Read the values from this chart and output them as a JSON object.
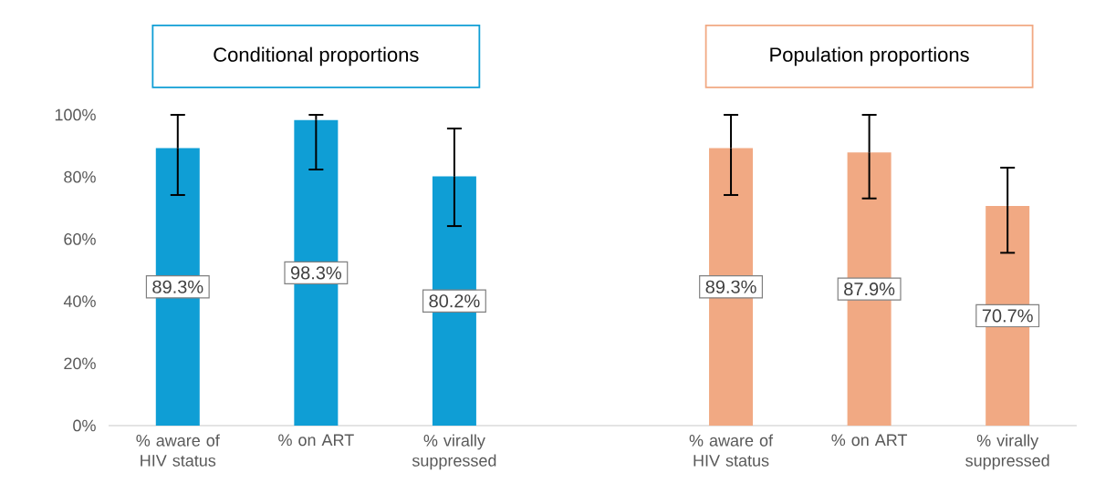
{
  "chart_data": {
    "type": "bar",
    "categories": [
      "% aware of HIV status",
      "% on ART",
      "% virally suppressed",
      null,
      "% aware of HIV status",
      "% on ART",
      "% virally suppressed"
    ],
    "values": [
      89.3,
      98.3,
      80.2,
      null,
      89.3,
      87.9,
      70.7
    ],
    "colors": [
      "#0f9ed5",
      "#0f9ed5",
      "#0f9ed5",
      null,
      "#f1a983",
      "#f1a983",
      "#f1a983"
    ],
    "errors": [
      [
        74.2,
        100
      ],
      [
        82.4,
        100
      ],
      [
        64.2,
        95.6
      ],
      null,
      [
        74.2,
        100
      ],
      [
        73.1,
        100
      ],
      [
        55.6,
        83.0
      ]
    ],
    "value_labels": [
      "89.3%",
      "98.3%",
      "80.2%",
      null,
      "89.3%",
      "87.9%",
      "70.7%"
    ],
    "annotations": [
      "Conditional proportions",
      "Population proportions"
    ],
    "ylim": [
      0,
      100
    ],
    "yticks": [
      {
        "value": 0,
        "label": "0%"
      },
      {
        "value": 20,
        "label": "20%"
      },
      {
        "value": 40,
        "label": "40%"
      },
      {
        "value": 60,
        "label": "60%"
      },
      {
        "value": 80,
        "label": "80%"
      },
      {
        "value": 100,
        "label": "100%"
      }
    ]
  }
}
